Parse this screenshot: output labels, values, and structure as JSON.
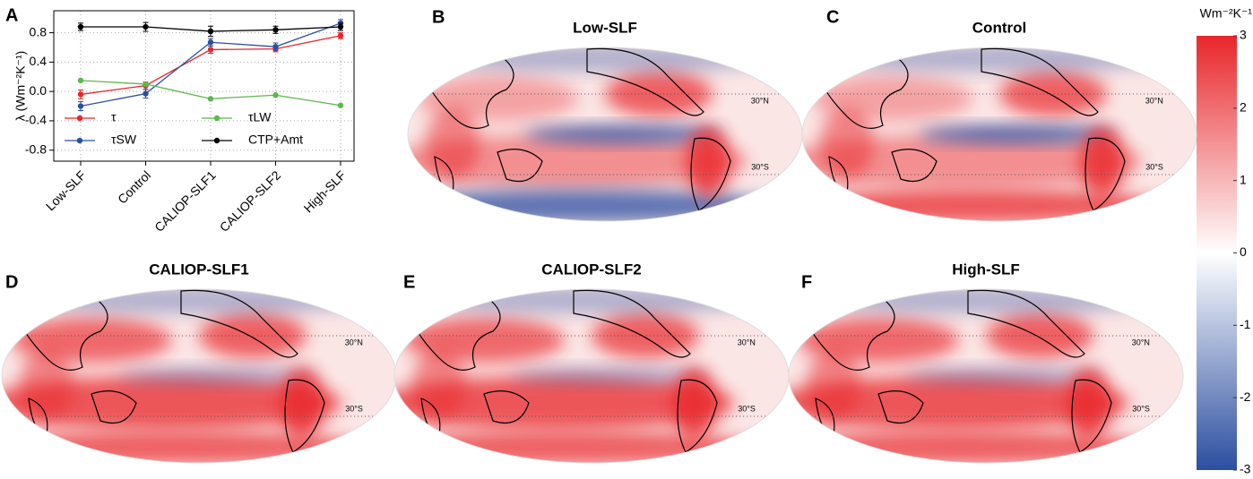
{
  "chart_data": [
    {
      "type": "line",
      "panel": "A",
      "ylabel": "λ (Wm⁻²K⁻¹)",
      "categories": [
        "Low-SLF",
        "Control",
        "CALIOP-SLF1",
        "CALIOP-SLF2",
        "High-SLF"
      ],
      "series": [
        {
          "name": "τ",
          "color": "#e8262a",
          "values": [
            -0.04,
            0.08,
            0.57,
            0.58,
            0.76
          ],
          "errors": [
            0.06,
            0.05,
            0.05,
            0.04,
            0.04
          ]
        },
        {
          "name": "τSW",
          "color": "#2b4ea0",
          "values": [
            -0.2,
            -0.03,
            0.67,
            0.61,
            0.93
          ],
          "errors": [
            0.06,
            0.06,
            0.05,
            0.05,
            0.05
          ]
        },
        {
          "name": "τLW",
          "color": "#5cb84c",
          "values": [
            0.15,
            0.1,
            -0.1,
            -0.05,
            -0.19
          ]
        },
        {
          "name": "CTP+Amt",
          "color": "#000000",
          "values": [
            0.88,
            0.88,
            0.82,
            0.84,
            0.88
          ],
          "errors": [
            0.05,
            0.06,
            0.07,
            0.05,
            0.05
          ]
        }
      ],
      "ylim": [
        -0.95,
        1.1
      ],
      "yticks": [
        -0.8,
        -0.4,
        {
          "value": 0,
          "label": "0.0"
        },
        0.4,
        0.8
      ],
      "grid": true,
      "legend": "bottom"
    },
    {
      "type": "colorbar",
      "title": "Wm⁻²K⁻¹",
      "ylim": [
        -3,
        3
      ],
      "yticks": [
        -3,
        -2,
        -1,
        0,
        1,
        2,
        3
      ],
      "colors": [
        "#2b4ea0",
        "#ffffff",
        "#e8262a"
      ]
    }
  ],
  "maps": [
    {
      "panel": "B",
      "title": "Low-SLF"
    },
    {
      "panel": "C",
      "title": "Control"
    },
    {
      "panel": "D",
      "title": "CALIOP-SLF1"
    },
    {
      "panel": "E",
      "title": "CALIOP-SLF2"
    },
    {
      "panel": "F",
      "title": "High-SLF"
    }
  ],
  "latitude_labels": [
    "30°N",
    "30°S"
  ]
}
